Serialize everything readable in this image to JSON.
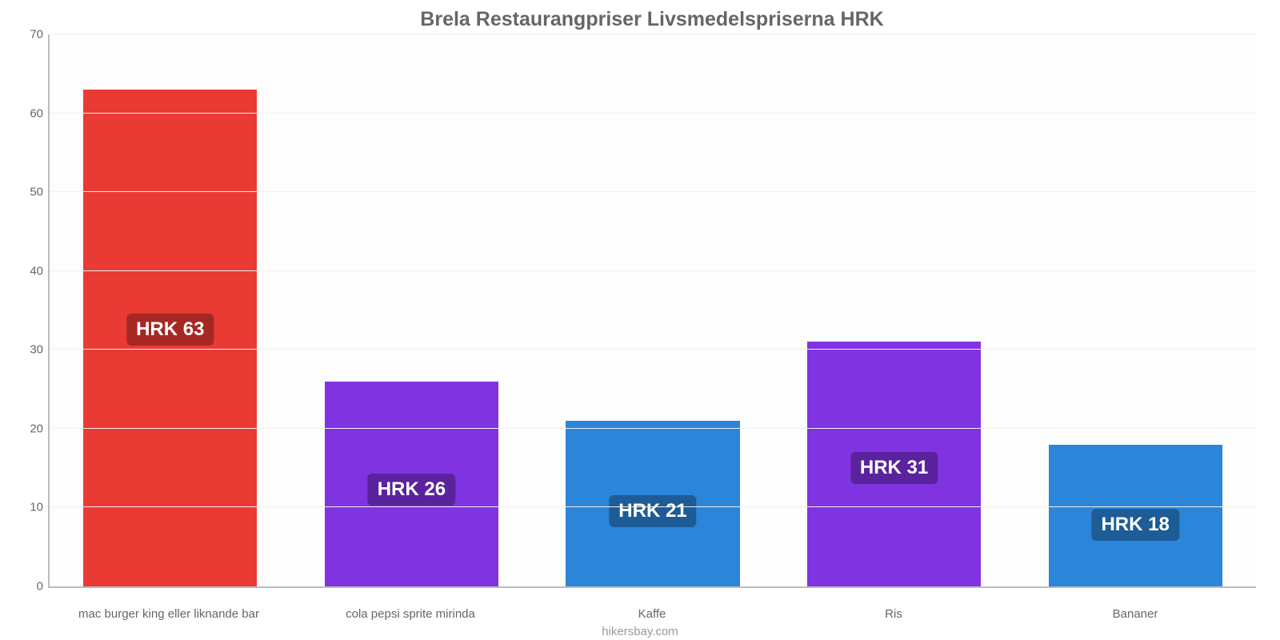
{
  "chart": {
    "type": "bar",
    "title": "Brela Restaurangpriser Livsmedelspriserna HRK",
    "title_color": "#666666",
    "title_fontsize": 25,
    "background_color": "#ffffff",
    "plot_background": "#fdfdfd",
    "grid_color": "#f1f1f1",
    "axis_color": "#bcbcbc",
    "tick_label_color": "#666666",
    "tick_fontsize": 15,
    "ylim": [
      0,
      70
    ],
    "ytick_step": 10,
    "yticks": [
      0,
      10,
      20,
      30,
      40,
      50,
      60,
      70
    ],
    "bar_width_ratio": 0.72,
    "value_label_fontsize": 24,
    "value_label_color": "#ffffff",
    "value_prefix": "HRK ",
    "categories": [
      "mac burger king eller liknande bar",
      "cola pepsi sprite mirinda",
      "Kaffe",
      "Ris",
      "Bananer"
    ],
    "values": [
      63,
      26,
      21,
      31,
      18
    ],
    "value_labels": [
      "HRK 63",
      "HRK 26",
      "HRK 21",
      "HRK 31",
      "HRK 18"
    ],
    "bar_colors": [
      "#ea3a34",
      "#8033e0",
      "#2b85d8",
      "#8033e0",
      "#2b85d8"
    ],
    "badge_colors": [
      "#a72822",
      "#5a239d",
      "#1d5c96",
      "#5a239d",
      "#1d5c96"
    ],
    "source_label": "hikersbay.com",
    "source_color": "#999999"
  }
}
